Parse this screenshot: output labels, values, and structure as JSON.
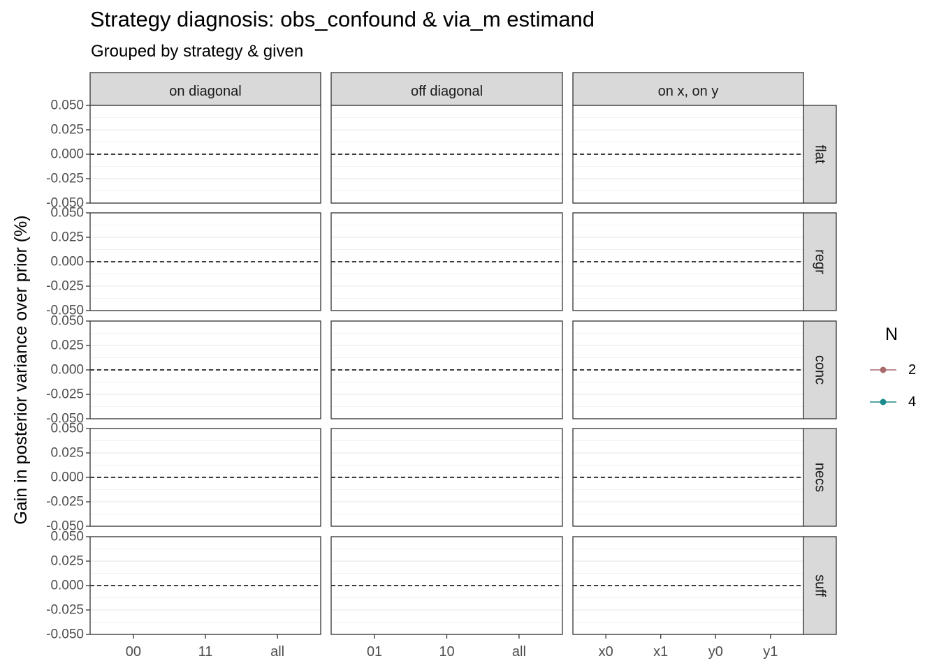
{
  "chart_data": {
    "type": "line",
    "title": "Strategy diagnosis: obs_confound & via_m estimand",
    "subtitle": "Grouped by strategy & given",
    "ylabel": "Gain in posterior variance over prior (%)",
    "xlabel": "",
    "ylim": [
      -0.05,
      0.05
    ],
    "y_ticks": [
      "0.050",
      "0.025",
      "0.000",
      "-0.025",
      "-0.050"
    ],
    "y_tick_values": [
      0.05,
      0.025,
      0,
      -0.025,
      -0.05
    ],
    "reference_line": {
      "y": 0,
      "style": "dashed"
    },
    "grid": true,
    "col_facets": [
      {
        "label": "on diagonal",
        "categories": [
          "00",
          "11",
          "all"
        ]
      },
      {
        "label": "off diagonal",
        "categories": [
          "01",
          "10",
          "all"
        ]
      },
      {
        "label": "on x, on y",
        "categories": [
          "x0",
          "x1",
          "y0",
          "y1"
        ]
      }
    ],
    "row_facets": [
      "flat",
      "regr",
      "conc",
      "necs",
      "suff"
    ],
    "legend": {
      "title": "N",
      "placement": "right",
      "entries": [
        {
          "label": "2",
          "color": "#a86a6a"
        },
        {
          "label": "4",
          "color": "#1a8a8a"
        }
      ]
    },
    "series": [
      {
        "name": "2",
        "values": []
      },
      {
        "name": "4",
        "values": []
      }
    ]
  }
}
